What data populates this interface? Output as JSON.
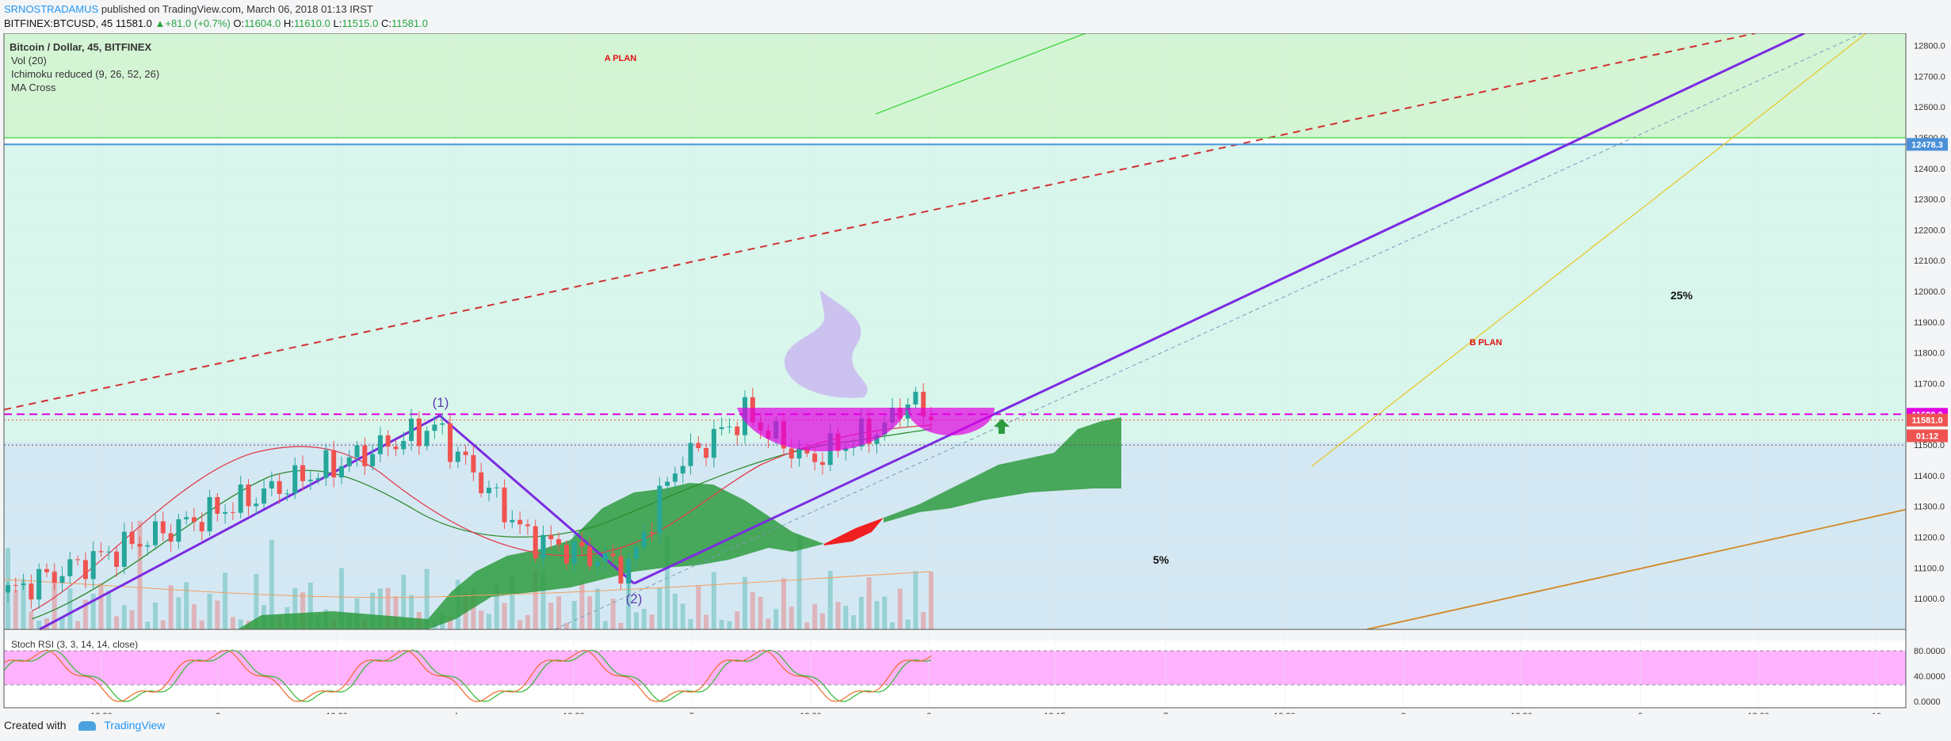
{
  "header": {
    "author": "SRNOSTRADAMUS",
    "published_text": "published on TradingView.com, March 06, 2018 01:13 IRST",
    "symbol": "BITFINEX:BTCUSD, 45",
    "last_price": "11581.0",
    "change": "▲+81.0 (+0.7%)",
    "o_label": "O:",
    "o_value": "11604.0",
    "h_label": "H:",
    "h_value": "11610.0",
    "l_label": "L:",
    "l_value": "11515.0",
    "c_label": "C:",
    "c_value": "11581.0"
  },
  "legend": {
    "title": "Bitcoin / Dollar, 45, BITFINEX",
    "items": [
      "Vol (20)",
      "Ichimoku reduced (9, 26, 52, 26)",
      "MA Cross"
    ]
  },
  "stoch_label": "Stoch RSI (3, 3, 14, 14, close)",
  "footer": {
    "created_with": "Created with",
    "brand": "TradingView"
  },
  "colors": {
    "up_candle": "#26a69a",
    "down_candle": "#ef5350",
    "zone_a": "#d4f5d4",
    "zone_b": "#d8f6ec",
    "zone_c": "#d4e8f3",
    "purple": "#7b2be0",
    "magenta": "#e100e1",
    "cloud_green": "#2e9b3e",
    "cloud_red": "#f02020"
  },
  "chart_data": {
    "type": "candlestick",
    "symbol": "BITFINEX:BTCUSD",
    "interval": "45",
    "ylim": [
      10900,
      12840
    ],
    "price_ticks": [
      11000,
      11100,
      11200,
      11300,
      11400,
      11500,
      11600,
      11700,
      11800,
      11900,
      12000,
      12100,
      12200,
      12300,
      12400,
      12500,
      12600,
      12700,
      12800
    ],
    "x_tick_labels": [
      "12:30",
      "3",
      "12:30",
      "4",
      "12:30",
      "5",
      "12:30",
      "6",
      "13:15",
      "7",
      "12:30",
      "8",
      "12:30",
      "9",
      "12:30",
      "10"
    ],
    "price_labels": [
      {
        "value": 12478.3,
        "text": "12478.3",
        "color": "#4a90d9"
      },
      {
        "value": 11600.0,
        "text": "11600.0",
        "color": "#e100e1"
      },
      {
        "value": 11581.0,
        "text": "11581.0",
        "color": "#ef5350"
      },
      {
        "value": 11530,
        "text": "01:12",
        "color": "#ef5350"
      }
    ],
    "annotations": [
      {
        "text": "A PLAN",
        "color": "#e01010"
      },
      {
        "text": "B PLAN",
        "color": "#e01010"
      },
      {
        "text": "25%",
        "color": "#111"
      },
      {
        "text": "5%",
        "color": "#111"
      },
      {
        "text": "(1)",
        "color": "#5a3bb0"
      },
      {
        "text": "(2)",
        "color": "#5a3bb0"
      }
    ],
    "stoch_ticks": [
      80,
      40,
      0
    ],
    "stoch_tick_labels": [
      "80.0000",
      "40.0000",
      "0.0000"
    ],
    "candle_count": 120,
    "last_close": 11581.0
  }
}
